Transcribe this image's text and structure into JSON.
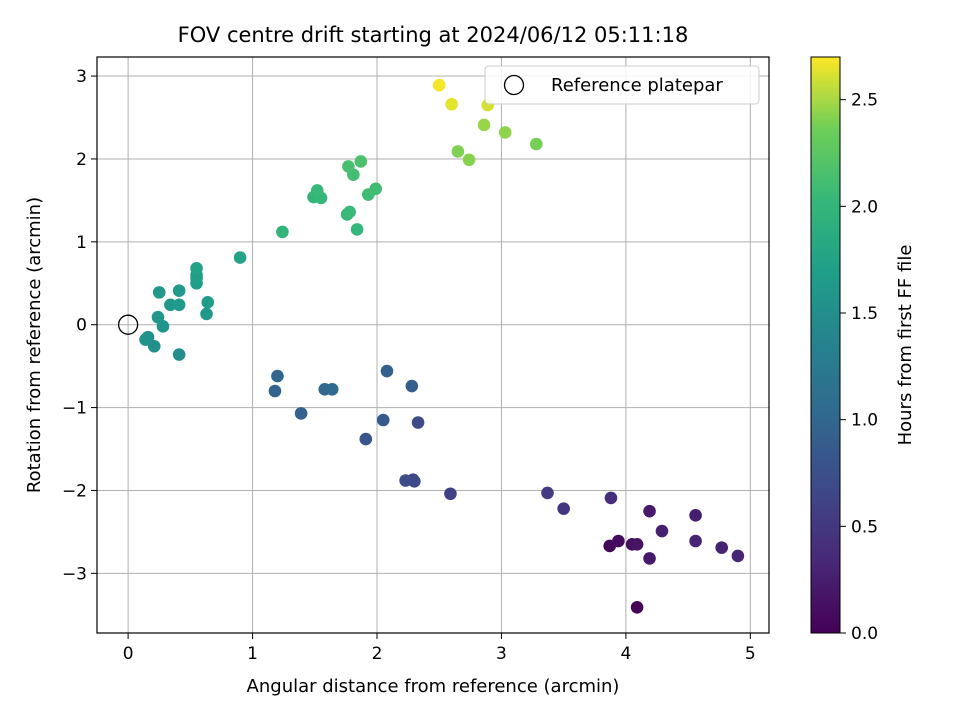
{
  "chart_data": {
    "type": "scatter",
    "title": "FOV centre drift starting at 2024/06/12 05:11:18",
    "xlabel": "Angular distance from reference (arcmin)",
    "ylabel": "Rotation from reference (arcmin)",
    "xlim": [
      -0.25,
      5.15
    ],
    "ylim": [
      -3.72,
      3.23
    ],
    "xticks": [
      0,
      1,
      2,
      3,
      4,
      5
    ],
    "yticks": [
      -3,
      -2,
      -1,
      0,
      1,
      2,
      3
    ],
    "grid": true,
    "legend": {
      "placement": "top-right",
      "entries": [
        "Reference platepar"
      ]
    },
    "reference_point": {
      "name": "Reference platepar",
      "x": 0,
      "y": 0
    },
    "colorbar": {
      "label": "Hours from first FF file",
      "colormap": "viridis",
      "range": [
        0.0,
        2.7
      ],
      "ticks": [
        "0.0",
        "0.5",
        "1.0",
        "1.5",
        "2.0",
        "2.5"
      ],
      "tick_values": [
        0.0,
        0.5,
        1.0,
        1.5,
        2.0,
        2.5
      ]
    },
    "points": [
      {
        "x": 4.09,
        "y": -3.41,
        "h": 0.02
      },
      {
        "x": 3.87,
        "y": -2.67,
        "h": 0.04
      },
      {
        "x": 3.94,
        "y": -2.61,
        "h": 0.08
      },
      {
        "x": 4.05,
        "y": -2.65,
        "h": 0.12
      },
      {
        "x": 4.09,
        "y": -2.65,
        "h": 0.16
      },
      {
        "x": 4.19,
        "y": -2.82,
        "h": 0.2
      },
      {
        "x": 4.19,
        "y": -2.25,
        "h": 0.22
      },
      {
        "x": 4.29,
        "y": -2.49,
        "h": 0.26
      },
      {
        "x": 4.56,
        "y": -2.3,
        "h": 0.24
      },
      {
        "x": 4.56,
        "y": -2.61,
        "h": 0.3
      },
      {
        "x": 4.77,
        "y": -2.69,
        "h": 0.28
      },
      {
        "x": 4.9,
        "y": -2.79,
        "h": 0.32
      },
      {
        "x": 3.88,
        "y": -2.09,
        "h": 0.4
      },
      {
        "x": 3.5,
        "y": -2.22,
        "h": 0.48
      },
      {
        "x": 3.37,
        "y": -2.03,
        "h": 0.52
      },
      {
        "x": 2.59,
        "y": -2.04,
        "h": 0.6
      },
      {
        "x": 2.29,
        "y": -1.87,
        "h": 0.64
      },
      {
        "x": 2.3,
        "y": -1.89,
        "h": 0.68
      },
      {
        "x": 2.23,
        "y": -1.88,
        "h": 0.72
      },
      {
        "x": 2.33,
        "y": -1.18,
        "h": 0.7
      },
      {
        "x": 1.91,
        "y": -1.38,
        "h": 0.82
      },
      {
        "x": 2.05,
        "y": -1.15,
        "h": 0.86
      },
      {
        "x": 2.28,
        "y": -0.74,
        "h": 0.9
      },
      {
        "x": 2.08,
        "y": -0.56,
        "h": 0.92
      },
      {
        "x": 1.39,
        "y": -1.07,
        "h": 0.94
      },
      {
        "x": 1.18,
        "y": -0.8,
        "h": 0.98
      },
      {
        "x": 1.2,
        "y": -0.62,
        "h": 1.0
      },
      {
        "x": 1.58,
        "y": -0.78,
        "h": 1.02
      },
      {
        "x": 1.64,
        "y": -0.78,
        "h": 1.04
      },
      {
        "x": 0.41,
        "y": -0.36,
        "h": 1.5
      },
      {
        "x": 0.21,
        "y": -0.26,
        "h": 1.52
      },
      {
        "x": 0.16,
        "y": -0.15,
        "h": 1.54
      },
      {
        "x": 0.14,
        "y": -0.18,
        "h": 1.56
      },
      {
        "x": 0.28,
        "y": -0.02,
        "h": 1.58
      },
      {
        "x": 0.24,
        "y": 0.09,
        "h": 1.6
      },
      {
        "x": 0.63,
        "y": 0.13,
        "h": 1.62
      },
      {
        "x": 0.34,
        "y": 0.24,
        "h": 1.6
      },
      {
        "x": 0.41,
        "y": 0.24,
        "h": 1.64
      },
      {
        "x": 0.64,
        "y": 0.27,
        "h": 1.66
      },
      {
        "x": 0.25,
        "y": 0.39,
        "h": 1.62
      },
      {
        "x": 0.41,
        "y": 0.41,
        "h": 1.64
      },
      {
        "x": 0.55,
        "y": 0.5,
        "h": 1.68
      },
      {
        "x": 0.55,
        "y": 0.56,
        "h": 1.7
      },
      {
        "x": 0.55,
        "y": 0.6,
        "h": 1.72
      },
      {
        "x": 0.55,
        "y": 0.68,
        "h": 1.74
      },
      {
        "x": 0.9,
        "y": 0.81,
        "h": 1.76
      },
      {
        "x": 1.24,
        "y": 1.12,
        "h": 1.98
      },
      {
        "x": 1.84,
        "y": 1.15,
        "h": 2.02
      },
      {
        "x": 1.76,
        "y": 1.33,
        "h": 2.04
      },
      {
        "x": 1.78,
        "y": 1.36,
        "h": 2.06
      },
      {
        "x": 1.49,
        "y": 1.54,
        "h": 2.0
      },
      {
        "x": 1.55,
        "y": 1.53,
        "h": 2.02
      },
      {
        "x": 1.52,
        "y": 1.62,
        "h": 2.04
      },
      {
        "x": 1.93,
        "y": 1.57,
        "h": 2.08
      },
      {
        "x": 1.99,
        "y": 1.64,
        "h": 2.1
      },
      {
        "x": 1.81,
        "y": 1.81,
        "h": 2.12
      },
      {
        "x": 1.77,
        "y": 1.91,
        "h": 2.14
      },
      {
        "x": 1.87,
        "y": 1.97,
        "h": 2.16
      },
      {
        "x": 2.65,
        "y": 2.09,
        "h": 2.4
      },
      {
        "x": 2.74,
        "y": 1.99,
        "h": 2.42
      },
      {
        "x": 3.28,
        "y": 2.18,
        "h": 2.38
      },
      {
        "x": 3.03,
        "y": 2.32,
        "h": 2.44
      },
      {
        "x": 2.86,
        "y": 2.41,
        "h": 2.46
      },
      {
        "x": 2.89,
        "y": 2.65,
        "h": 2.6
      },
      {
        "x": 2.6,
        "y": 2.66,
        "h": 2.64
      },
      {
        "x": 2.5,
        "y": 2.89,
        "h": 2.68
      }
    ]
  }
}
